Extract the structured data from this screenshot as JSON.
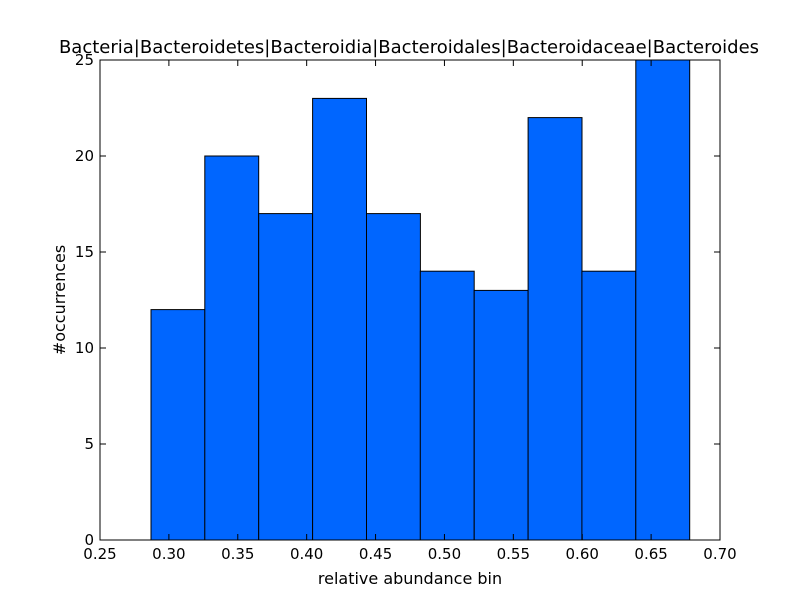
{
  "chart_data": {
    "type": "bar",
    "title": "Bacteria|Bacteroidetes|Bacteroidia|Bacteroidales|Bacteroidaceae|Bacteroides",
    "xlabel": "relative abundance bin",
    "ylabel": "#occurrences",
    "bin_edges": [
      0.287,
      0.3261,
      0.3652,
      0.4043,
      0.4434,
      0.4825,
      0.5216,
      0.5607,
      0.5998,
      0.6389,
      0.678
    ],
    "values": [
      12,
      20,
      17,
      23,
      17,
      14,
      13,
      22,
      14,
      25
    ],
    "xlim": [
      0.25,
      0.7
    ],
    "ylim": [
      0,
      25
    ],
    "xticks": [
      0.25,
      0.3,
      0.35,
      0.4,
      0.45,
      0.5,
      0.55,
      0.6,
      0.65,
      0.7
    ],
    "xtick_labels": [
      "0.25",
      "0.30",
      "0.35",
      "0.40",
      "0.45",
      "0.50",
      "0.55",
      "0.60",
      "0.65",
      "0.70"
    ],
    "yticks": [
      0,
      5,
      10,
      15,
      20,
      25
    ],
    "ytick_labels": [
      "0",
      "5",
      "10",
      "15",
      "20",
      "25"
    ],
    "bar_color": "#0066ff",
    "grid": false
  }
}
